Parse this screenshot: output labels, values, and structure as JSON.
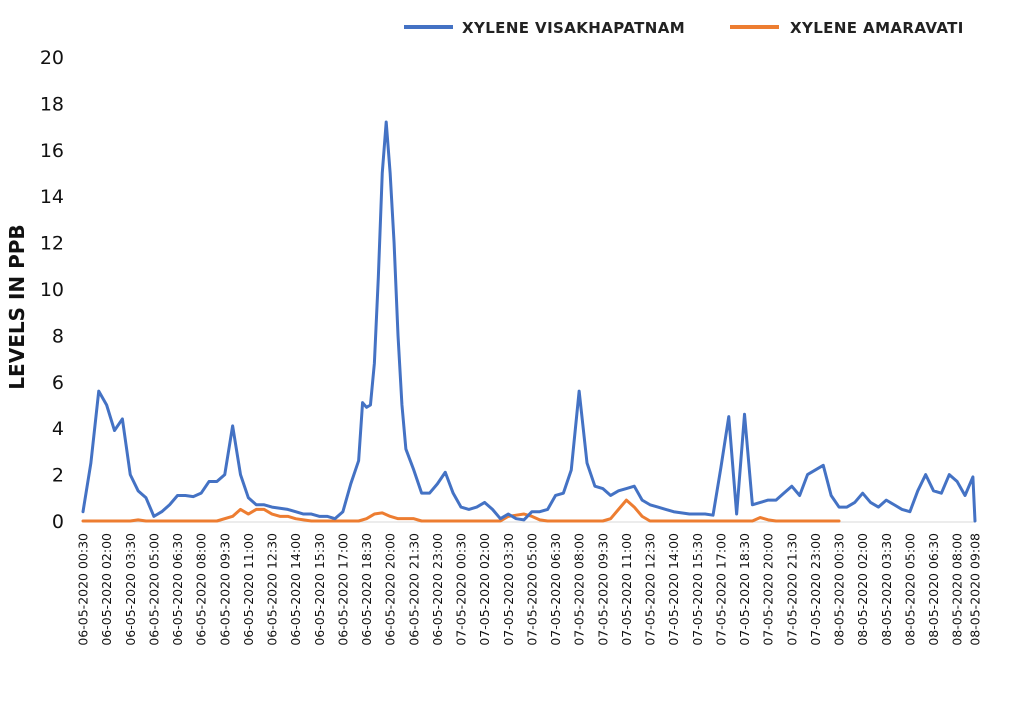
{
  "chart_data": {
    "type": "line",
    "ylabel": "LEVELS IN PPB",
    "xlabel": "",
    "ylim": [
      0,
      20
    ],
    "y_ticks": [
      0,
      2,
      4,
      6,
      8,
      10,
      12,
      14,
      16,
      18,
      20
    ],
    "grid": false,
    "legend_position": "top-right",
    "x_tick_labels": [
      "06-05-2020 00:30",
      "06-05-2020 02:00",
      "06-05-2020 03:30",
      "06-05-2020 05:00",
      "06-05-2020 06:30",
      "06-05-2020 08:00",
      "06-05-2020 09:30",
      "06-05-2020 11:00",
      "06-05-2020 12:30",
      "06-05-2020 14:00",
      "06-05-2020 15:30",
      "06-05-2020 17:00",
      "06-05-2020 18:30",
      "06-05-2020 20:00",
      "06-05-2020 21:30",
      "06-05-2020 23:00",
      "07-05-2020 00:30",
      "07-05-2020 02:00",
      "07-05-2020 03:30",
      "07-05-2020 05:00",
      "07-05-2020 06:30",
      "07-05-2020 08:00",
      "07-05-2020 09:30",
      "07-05-2020 11:00",
      "07-05-2020 12:30",
      "07-05-2020 14:00",
      "07-05-2020 15:30",
      "07-05-2020 17:00",
      "07-05-2020 18:30",
      "07-05-2020 20:00",
      "07-05-2020 21:30",
      "07-05-2020 23:00",
      "08-05-2020 00:30",
      "08-05-2020 02:00",
      "08-05-2020 03:30",
      "08-05-2020 05:00",
      "08-05-2020 06:30",
      "08-05-2020 08:00",
      "08-05-2020 09:08"
    ],
    "series": [
      {
        "name": "XYLENE VISAKHAPATNAM",
        "color": "#4472C4",
        "points": [
          [
            "06-05-2020 00:30",
            0.4
          ],
          [
            "06-05-2020 01:00",
            2.5
          ],
          [
            "06-05-2020 01:30",
            5.6
          ],
          [
            "06-05-2020 02:00",
            5.0
          ],
          [
            "06-05-2020 02:30",
            3.9
          ],
          [
            "06-05-2020 03:00",
            4.4
          ],
          [
            "06-05-2020 03:30",
            2.0
          ],
          [
            "06-05-2020 04:00",
            1.3
          ],
          [
            "06-05-2020 04:30",
            1.0
          ],
          [
            "06-05-2020 05:00",
            0.2
          ],
          [
            "06-05-2020 05:30",
            0.4
          ],
          [
            "06-05-2020 06:00",
            0.7
          ],
          [
            "06-05-2020 06:30",
            1.1
          ],
          [
            "06-05-2020 07:00",
            1.1
          ],
          [
            "06-05-2020 07:30",
            1.05
          ],
          [
            "06-05-2020 08:00",
            1.2
          ],
          [
            "06-05-2020 08:30",
            1.7
          ],
          [
            "06-05-2020 09:00",
            1.7
          ],
          [
            "06-05-2020 09:30",
            2.0
          ],
          [
            "06-05-2020 10:00",
            4.1
          ],
          [
            "06-05-2020 10:30",
            2.0
          ],
          [
            "06-05-2020 11:00",
            1.0
          ],
          [
            "06-05-2020 11:30",
            0.7
          ],
          [
            "06-05-2020 12:00",
            0.7
          ],
          [
            "06-05-2020 12:30",
            0.6
          ],
          [
            "06-05-2020 13:00",
            0.55
          ],
          [
            "06-05-2020 13:30",
            0.5
          ],
          [
            "06-05-2020 14:00",
            0.4
          ],
          [
            "06-05-2020 14:30",
            0.3
          ],
          [
            "06-05-2020 15:00",
            0.3
          ],
          [
            "06-05-2020 15:30",
            0.2
          ],
          [
            "06-05-2020 16:00",
            0.2
          ],
          [
            "06-05-2020 16:30",
            0.1
          ],
          [
            "06-05-2020 17:00",
            0.4
          ],
          [
            "06-05-2020 17:30",
            1.6
          ],
          [
            "06-05-2020 18:00",
            2.6
          ],
          [
            "06-05-2020 18:15",
            5.1
          ],
          [
            "06-05-2020 18:30",
            4.9
          ],
          [
            "06-05-2020 18:45",
            5.0
          ],
          [
            "06-05-2020 19:00",
            6.8
          ],
          [
            "06-05-2020 19:15",
            10.5
          ],
          [
            "06-05-2020 19:30",
            15.0
          ],
          [
            "06-05-2020 19:45",
            17.2
          ],
          [
            "06-05-2020 20:00",
            15.0
          ],
          [
            "06-05-2020 20:15",
            12.0
          ],
          [
            "06-05-2020 20:30",
            8.0
          ],
          [
            "06-05-2020 20:45",
            5.0
          ],
          [
            "06-05-2020 21:00",
            3.1
          ],
          [
            "06-05-2020 21:30",
            2.2
          ],
          [
            "06-05-2020 22:00",
            1.2
          ],
          [
            "06-05-2020 22:30",
            1.2
          ],
          [
            "06-05-2020 23:00",
            1.6
          ],
          [
            "06-05-2020 23:30",
            2.1
          ],
          [
            "07-05-2020 00:00",
            1.2
          ],
          [
            "07-05-2020 00:30",
            0.6
          ],
          [
            "07-05-2020 01:00",
            0.5
          ],
          [
            "07-05-2020 01:30",
            0.6
          ],
          [
            "07-05-2020 02:00",
            0.8
          ],
          [
            "07-05-2020 02:30",
            0.5
          ],
          [
            "07-05-2020 03:00",
            0.1
          ],
          [
            "07-05-2020 03:30",
            0.3
          ],
          [
            "07-05-2020 04:00",
            0.1
          ],
          [
            "07-05-2020 04:30",
            0.05
          ],
          [
            "07-05-2020 05:00",
            0.4
          ],
          [
            "07-05-2020 05:30",
            0.4
          ],
          [
            "07-05-2020 06:00",
            0.5
          ],
          [
            "07-05-2020 06:30",
            1.1
          ],
          [
            "07-05-2020 07:00",
            1.2
          ],
          [
            "07-05-2020 07:30",
            2.2
          ],
          [
            "07-05-2020 08:00",
            5.6
          ],
          [
            "07-05-2020 08:30",
            2.5
          ],
          [
            "07-05-2020 09:00",
            1.5
          ],
          [
            "07-05-2020 09:30",
            1.4
          ],
          [
            "07-05-2020 10:00",
            1.1
          ],
          [
            "07-05-2020 10:30",
            1.3
          ],
          [
            "07-05-2020 11:00",
            1.4
          ],
          [
            "07-05-2020 11:30",
            1.5
          ],
          [
            "07-05-2020 12:00",
            0.9
          ],
          [
            "07-05-2020 12:30",
            0.7
          ],
          [
            "07-05-2020 13:00",
            0.6
          ],
          [
            "07-05-2020 13:30",
            0.5
          ],
          [
            "07-05-2020 14:00",
            0.4
          ],
          [
            "07-05-2020 14:30",
            0.35
          ],
          [
            "07-05-2020 15:00",
            0.3
          ],
          [
            "07-05-2020 15:30",
            0.3
          ],
          [
            "07-05-2020 16:00",
            0.3
          ],
          [
            "07-05-2020 16:30",
            0.25
          ],
          [
            "07-05-2020 17:00",
            2.3
          ],
          [
            "07-05-2020 17:30",
            4.5
          ],
          [
            "07-05-2020 18:00",
            0.3
          ],
          [
            "07-05-2020 18:30",
            4.6
          ],
          [
            "07-05-2020 19:00",
            0.7
          ],
          [
            "07-05-2020 19:30",
            0.8
          ],
          [
            "07-05-2020 20:00",
            0.9
          ],
          [
            "07-05-2020 20:30",
            0.9
          ],
          [
            "07-05-2020 21:00",
            1.2
          ],
          [
            "07-05-2020 21:30",
            1.5
          ],
          [
            "07-05-2020 22:00",
            1.1
          ],
          [
            "07-05-2020 22:30",
            2.0
          ],
          [
            "07-05-2020 23:00",
            2.2
          ],
          [
            "07-05-2020 23:30",
            2.4
          ],
          [
            "08-05-2020 00:00",
            1.1
          ],
          [
            "08-05-2020 00:30",
            0.6
          ],
          [
            "08-05-2020 01:00",
            0.6
          ],
          [
            "08-05-2020 01:30",
            0.8
          ],
          [
            "08-05-2020 02:00",
            1.2
          ],
          [
            "08-05-2020 02:30",
            0.8
          ],
          [
            "08-05-2020 03:00",
            0.6
          ],
          [
            "08-05-2020 03:30",
            0.9
          ],
          [
            "08-05-2020 04:00",
            0.7
          ],
          [
            "08-05-2020 04:30",
            0.5
          ],
          [
            "08-05-2020 05:00",
            0.4
          ],
          [
            "08-05-2020 05:30",
            1.3
          ],
          [
            "08-05-2020 06:00",
            2.0
          ],
          [
            "08-05-2020 06:30",
            1.3
          ],
          [
            "08-05-2020 07:00",
            1.2
          ],
          [
            "08-05-2020 07:30",
            2.0
          ],
          [
            "08-05-2020 08:00",
            1.7
          ],
          [
            "08-05-2020 08:30",
            1.1
          ],
          [
            "08-05-2020 09:00",
            1.9
          ],
          [
            "08-05-2020 09:08",
            0.0
          ]
        ]
      },
      {
        "name": "XYLENE AMARAVATI",
        "color": "#ED7D31",
        "points": [
          [
            "06-05-2020 00:30",
            0.0
          ],
          [
            "06-05-2020 03:30",
            0.0
          ],
          [
            "06-05-2020 04:00",
            0.05
          ],
          [
            "06-05-2020 04:30",
            0.0
          ],
          [
            "06-05-2020 09:00",
            0.0
          ],
          [
            "06-05-2020 10:00",
            0.2
          ],
          [
            "06-05-2020 10:30",
            0.5
          ],
          [
            "06-05-2020 11:00",
            0.3
          ],
          [
            "06-05-2020 11:30",
            0.5
          ],
          [
            "06-05-2020 12:00",
            0.5
          ],
          [
            "06-05-2020 12:30",
            0.3
          ],
          [
            "06-05-2020 13:00",
            0.2
          ],
          [
            "06-05-2020 13:30",
            0.2
          ],
          [
            "06-05-2020 14:00",
            0.1
          ],
          [
            "06-05-2020 14:30",
            0.05
          ],
          [
            "06-05-2020 15:00",
            0.0
          ],
          [
            "06-05-2020 18:00",
            0.0
          ],
          [
            "06-05-2020 18:30",
            0.1
          ],
          [
            "06-05-2020 19:00",
            0.3
          ],
          [
            "06-05-2020 19:30",
            0.35
          ],
          [
            "06-05-2020 20:00",
            0.2
          ],
          [
            "06-05-2020 20:30",
            0.1
          ],
          [
            "06-05-2020 21:30",
            0.1
          ],
          [
            "06-05-2020 22:00",
            0.0
          ],
          [
            "07-05-2020 03:00",
            0.0
          ],
          [
            "07-05-2020 03:30",
            0.2
          ],
          [
            "07-05-2020 04:00",
            0.25
          ],
          [
            "07-05-2020 04:30",
            0.3
          ],
          [
            "07-05-2020 05:00",
            0.2
          ],
          [
            "07-05-2020 05:30",
            0.05
          ],
          [
            "07-05-2020 06:00",
            0.0
          ],
          [
            "07-05-2020 09:30",
            0.0
          ],
          [
            "07-05-2020 10:00",
            0.1
          ],
          [
            "07-05-2020 10:30",
            0.5
          ],
          [
            "07-05-2020 11:00",
            0.9
          ],
          [
            "07-05-2020 11:30",
            0.6
          ],
          [
            "07-05-2020 12:00",
            0.2
          ],
          [
            "07-05-2020 12:30",
            0.0
          ],
          [
            "07-05-2020 19:00",
            0.0
          ],
          [
            "07-05-2020 19:30",
            0.15
          ],
          [
            "07-05-2020 20:00",
            0.05
          ],
          [
            "07-05-2020 20:30",
            0.0
          ],
          [
            "08-05-2020 00:30",
            0.0
          ]
        ]
      }
    ]
  }
}
